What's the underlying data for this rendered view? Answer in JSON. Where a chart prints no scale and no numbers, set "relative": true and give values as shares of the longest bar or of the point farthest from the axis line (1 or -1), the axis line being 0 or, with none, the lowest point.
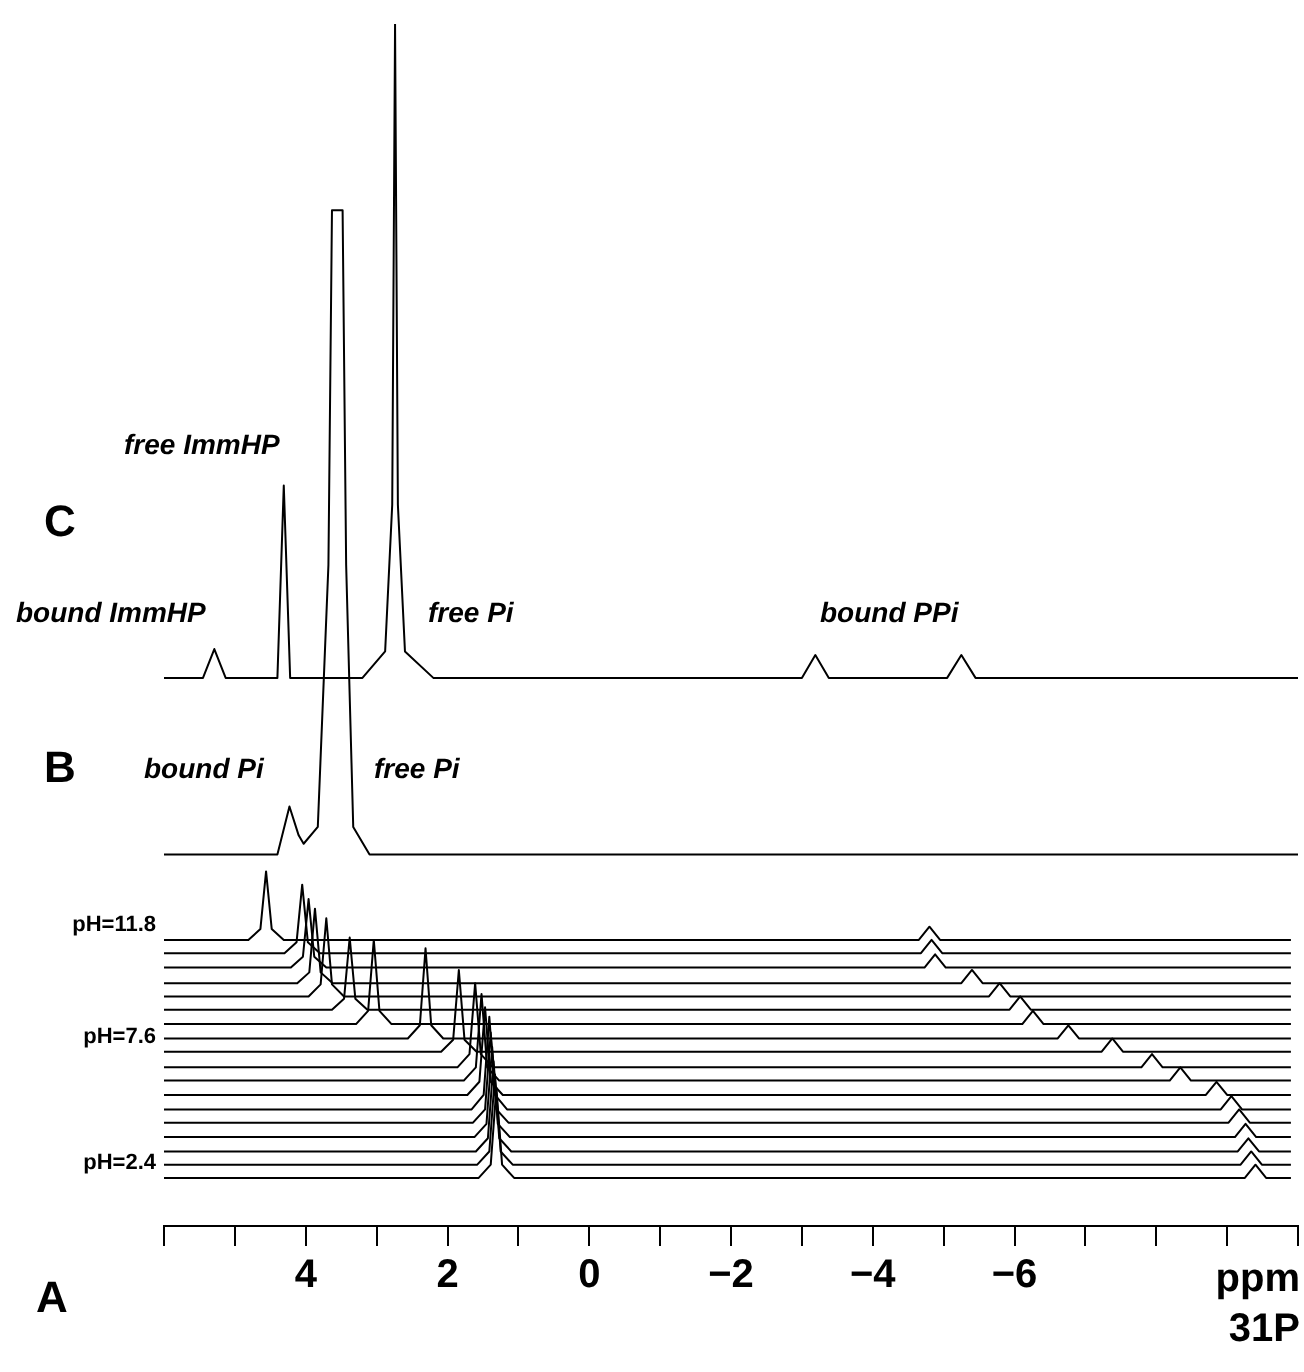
{
  "chart_data": {
    "type": "line",
    "relative": true,
    "xlabel": "ppm\n31P",
    "xlim": [
      6,
      -10
    ],
    "xticks": [
      {
        "value": 6,
        "label": null
      },
      {
        "value": 5,
        "label": null
      },
      4,
      {
        "value": 3,
        "label": null
      },
      2,
      {
        "value": 1,
        "label": null
      },
      0,
      {
        "value": -1,
        "label": null
      },
      {
        "value": -2,
        "label": "−2"
      },
      {
        "value": -3,
        "label": null
      },
      {
        "value": -4,
        "label": "−4"
      },
      {
        "value": -5,
        "label": null
      },
      {
        "value": -6,
        "label": "−6"
      },
      {
        "value": -7,
        "label": null
      },
      {
        "value": -8,
        "label": null
      },
      {
        "value": -9,
        "label": null
      },
      {
        "value": -10,
        "label": null
      }
    ],
    "grid": false,
    "legend": false,
    "annotations": [
      "free ImmHP",
      "bound ImmHP",
      "free Pi",
      "bound PPi",
      "bound Pi",
      "free Pi",
      "A",
      "B",
      "C"
    ],
    "series": [
      {
        "color": "#000000",
        "x": [
          6,
          5.45,
          5.29,
          5.13,
          4.4,
          4.31,
          4.22,
          3.2,
          2.88,
          2.78,
          2.74,
          2.7,
          2.6,
          2.2,
          -3.0,
          -3.19,
          -3.38,
          -5.05,
          -5.25,
          -5.45,
          -10
        ],
        "values": [
          0.456,
          0.456,
          0.48,
          0.456,
          0.456,
          0.616,
          0.456,
          0.456,
          0.478,
          0.6,
          1.0,
          0.6,
          0.478,
          0.456,
          0.456,
          0.475,
          0.456,
          0.456,
          0.475,
          0.456,
          0.456
        ]
      },
      {
        "color": "#000000",
        "x": [
          6,
          4.4,
          4.23,
          4.1,
          4.03,
          3.83,
          3.68,
          3.63,
          3.48,
          3.43,
          3.33,
          3.1,
          -10
        ],
        "values": [
          0.309,
          0.309,
          0.349,
          0.325,
          0.318,
          0.332,
          0.55,
          0.845,
          0.845,
          0.55,
          0.332,
          0.309,
          0.309
        ]
      },
      {
        "name": "pH=11.8",
        "color": "#000000",
        "x": [
          6,
          4.81,
          4.64,
          4.56,
          4.48,
          4.31,
          -4.65,
          -4.8,
          -4.95,
          -9.9
        ],
        "values": [
          0.238,
          0.238,
          0.247,
          0.295,
          0.247,
          0.238,
          0.238,
          0.249,
          0.238,
          0.238
        ]
      },
      {
        "color": "#000000",
        "x": [
          6,
          4.3,
          4.13,
          4.05,
          3.97,
          3.8,
          -4.68,
          -4.83,
          -4.98,
          -9.9
        ],
        "values": [
          0.227,
          0.227,
          0.236,
          0.284,
          0.236,
          0.227,
          0.227,
          0.238,
          0.227,
          0.227
        ]
      },
      {
        "color": "#000000",
        "x": [
          6,
          4.21,
          4.04,
          3.96,
          3.88,
          3.71,
          -4.73,
          -4.88,
          -5.03,
          -9.9
        ],
        "values": [
          0.215,
          0.215,
          0.224,
          0.272,
          0.224,
          0.215,
          0.215,
          0.226,
          0.215,
          0.215
        ]
      },
      {
        "color": "#000000",
        "x": [
          6,
          4.12,
          3.95,
          3.87,
          3.79,
          3.62,
          -5.25,
          -5.4,
          -5.55,
          -9.9
        ],
        "values": [
          0.202,
          0.202,
          0.211,
          0.264,
          0.211,
          0.202,
          0.202,
          0.213,
          0.202,
          0.202
        ]
      },
      {
        "color": "#000000",
        "x": [
          6,
          3.96,
          3.79,
          3.71,
          3.63,
          3.46,
          -5.64,
          -5.79,
          -5.94,
          -9.9
        ],
        "values": [
          0.191,
          0.191,
          0.201,
          0.256,
          0.201,
          0.191,
          0.191,
          0.202,
          0.191,
          0.191
        ]
      },
      {
        "color": "#000000",
        "x": [
          6,
          3.63,
          3.46,
          3.38,
          3.3,
          3.13,
          -5.93,
          -6.08,
          -6.23,
          -9.9
        ],
        "values": [
          0.18,
          0.18,
          0.189,
          0.24,
          0.189,
          0.18,
          0.18,
          0.191,
          0.18,
          0.18
        ]
      },
      {
        "color": "#000000",
        "x": [
          6,
          3.29,
          3.12,
          3.04,
          2.96,
          2.79,
          -6.11,
          -6.26,
          -6.41,
          -9.9
        ],
        "values": [
          0.168,
          0.168,
          0.179,
          0.238,
          0.179,
          0.168,
          0.168,
          0.179,
          0.168,
          0.168
        ]
      },
      {
        "color": "#000000",
        "x": [
          6,
          2.56,
          2.39,
          2.31,
          2.23,
          2.06,
          -6.61,
          -6.76,
          -6.91,
          -9.9
        ],
        "values": [
          0.156,
          0.156,
          0.167,
          0.231,
          0.167,
          0.156,
          0.156,
          0.167,
          0.156,
          0.156
        ]
      },
      {
        "name": "pH=7.6",
        "color": "#000000",
        "x": [
          6,
          2.09,
          1.92,
          1.84,
          1.76,
          1.59,
          -7.23,
          -7.38,
          -7.53,
          -9.9
        ],
        "values": [
          0.145,
          0.145,
          0.155,
          0.213,
          0.155,
          0.145,
          0.145,
          0.156,
          0.145,
          0.145
        ]
      },
      {
        "color": "#000000",
        "x": [
          6,
          1.86,
          1.69,
          1.61,
          1.53,
          1.36,
          -7.79,
          -7.94,
          -8.09,
          -9.9
        ],
        "values": [
          0.132,
          0.132,
          0.143,
          0.202,
          0.143,
          0.132,
          0.132,
          0.143,
          0.132,
          0.132
        ]
      },
      {
        "color": "#000000",
        "x": [
          6,
          1.77,
          1.6,
          1.52,
          1.44,
          1.27,
          -8.19,
          -8.34,
          -8.49,
          -9.9
        ],
        "values": [
          0.121,
          0.121,
          0.132,
          0.193,
          0.132,
          0.121,
          0.121,
          0.132,
          0.121,
          0.121
        ]
      },
      {
        "color": "#000000",
        "x": [
          6,
          1.72,
          1.55,
          1.47,
          1.39,
          1.22,
          -8.7,
          -8.85,
          -9.0,
          -9.9
        ],
        "values": [
          0.109,
          0.109,
          0.12,
          0.182,
          0.12,
          0.109,
          0.109,
          0.12,
          0.109,
          0.109
        ]
      },
      {
        "color": "#000000",
        "x": [
          6,
          1.66,
          1.49,
          1.41,
          1.33,
          1.16,
          -8.91,
          -9.06,
          -9.21,
          -9.9
        ],
        "values": [
          0.097,
          0.097,
          0.109,
          0.174,
          0.109,
          0.097,
          0.097,
          0.108,
          0.097,
          0.097
        ]
      },
      {
        "color": "#000000",
        "x": [
          6,
          1.64,
          1.47,
          1.39,
          1.31,
          1.14,
          -9.02,
          -9.17,
          -9.32,
          -9.9
        ],
        "values": [
          0.086,
          0.086,
          0.097,
          0.161,
          0.097,
          0.086,
          0.086,
          0.097,
          0.086,
          0.086
        ]
      },
      {
        "color": "#000000",
        "x": [
          6,
          1.62,
          1.45,
          1.37,
          1.29,
          1.12,
          -9.11,
          -9.26,
          -9.41,
          -9.9
        ],
        "values": [
          0.074,
          0.074,
          0.085,
          0.149,
          0.085,
          0.074,
          0.074,
          0.085,
          0.074,
          0.074
        ]
      },
      {
        "color": "#000000",
        "x": [
          6,
          1.6,
          1.43,
          1.35,
          1.27,
          1.1,
          -9.15,
          -9.3,
          -9.45,
          -9.9
        ],
        "values": [
          0.062,
          0.062,
          0.073,
          0.137,
          0.073,
          0.062,
          0.062,
          0.073,
          0.062,
          0.062
        ]
      },
      {
        "color": "#000000",
        "x": [
          6,
          1.58,
          1.41,
          1.33,
          1.25,
          1.08,
          -9.19,
          -9.34,
          -9.49,
          -9.9
        ],
        "values": [
          0.051,
          0.051,
          0.062,
          0.126,
          0.062,
          0.051,
          0.051,
          0.062,
          0.051,
          0.051
        ]
      },
      {
        "name": "pH=2.4",
        "color": "#000000",
        "x": [
          6,
          1.56,
          1.39,
          1.31,
          1.23,
          1.06,
          -9.25,
          -9.4,
          -9.55,
          -9.9
        ],
        "values": [
          0.04,
          0.04,
          0.051,
          0.115,
          0.051,
          0.04,
          0.04,
          0.051,
          0.04,
          0.04
        ]
      }
    ]
  }
}
